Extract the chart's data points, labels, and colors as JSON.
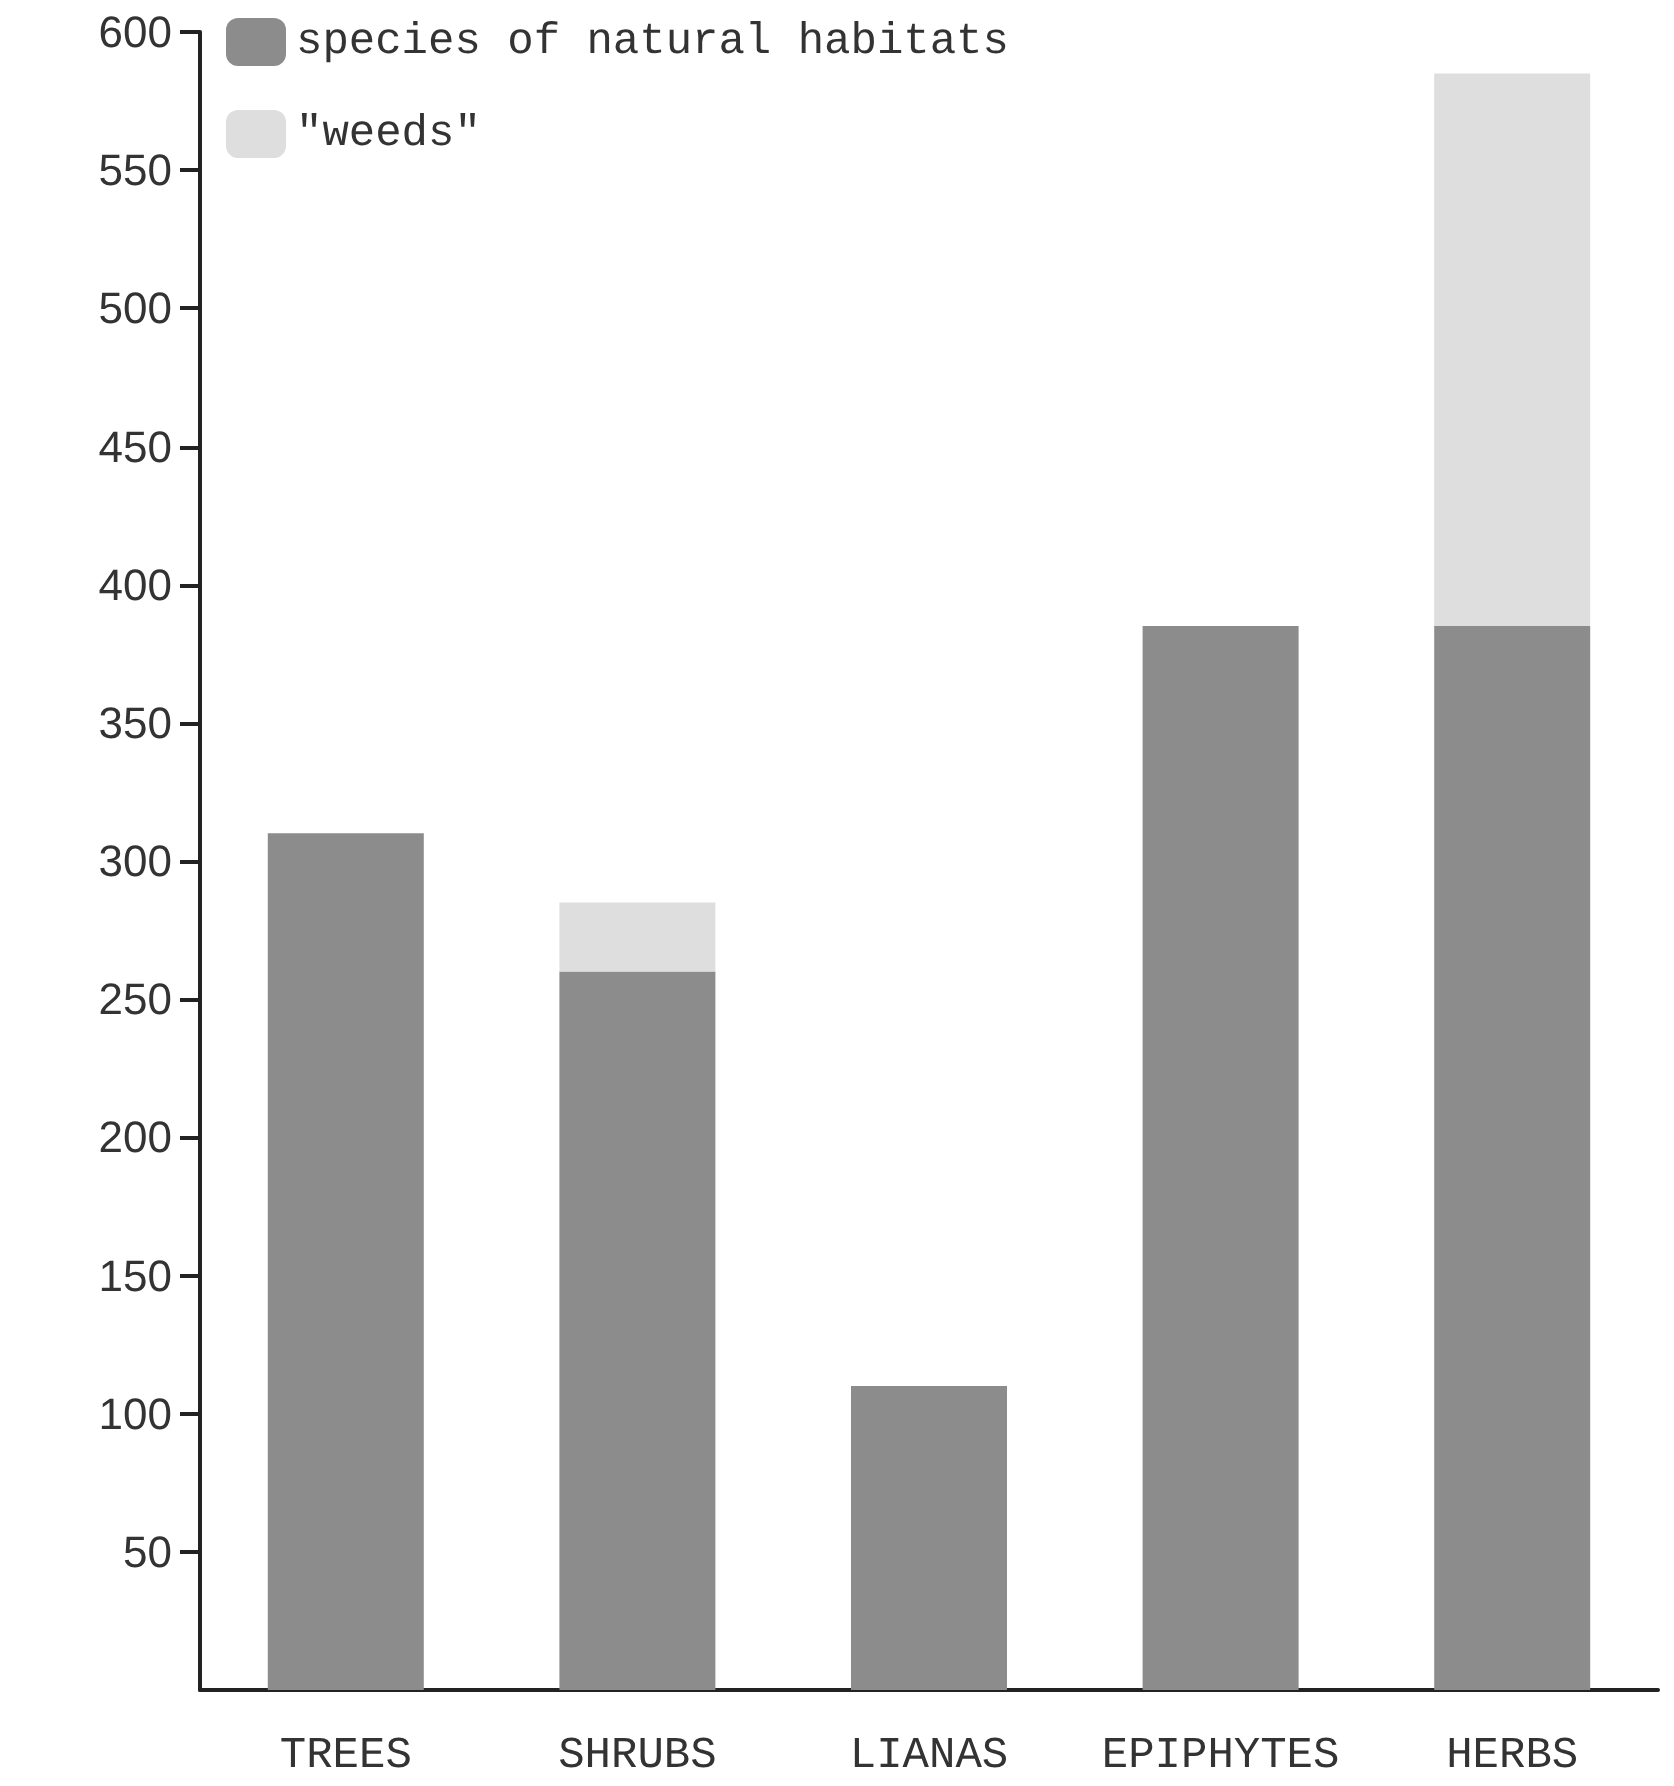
{
  "chart_data": {
    "type": "bar",
    "stacked": true,
    "categories": [
      "TREES",
      "SHRUBS",
      "LIANAS",
      "EPIPHYTES",
      "HERBS"
    ],
    "series": [
      {
        "name": "species of natural habitats",
        "color": "#8c8c8c",
        "values": [
          310,
          260,
          110,
          385,
          385
        ]
      },
      {
        "name": "\"weeds\"",
        "color": "#dedede",
        "values": [
          null,
          25,
          null,
          null,
          200
        ]
      }
    ],
    "ylim": [
      0,
      600
    ],
    "yticks": [
      50,
      100,
      150,
      200,
      250,
      300,
      350,
      400,
      450,
      500,
      550,
      600
    ],
    "grid": false,
    "legend": "top left"
  }
}
